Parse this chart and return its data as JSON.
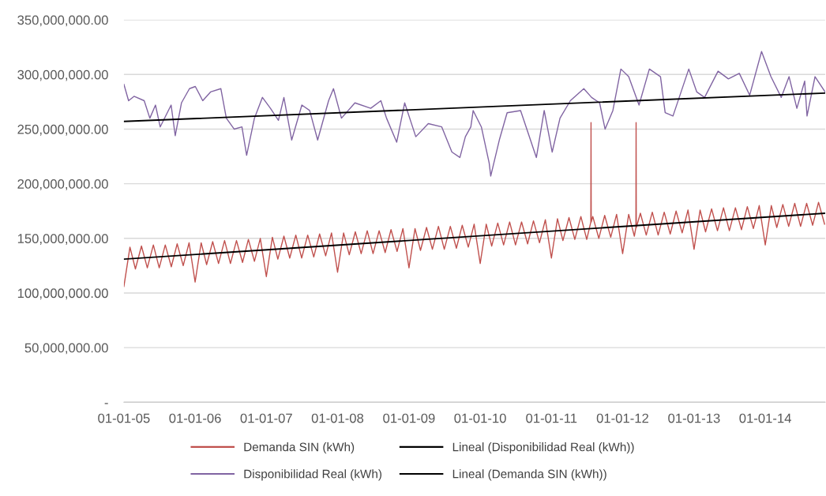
{
  "chart_data": {
    "type": "line",
    "xlim": [
      "2005-01-01",
      "2014-11-04"
    ],
    "xticks": [
      {
        "value": "2005-01-01",
        "label": "01-01-05"
      },
      {
        "value": "2006-01-01",
        "label": "01-01-06"
      },
      {
        "value": "2007-01-01",
        "label": "01-01-07"
      },
      {
        "value": "2008-01-01",
        "label": "01-01-08"
      },
      {
        "value": "2009-01-01",
        "label": "01-01-09"
      },
      {
        "value": "2010-01-01",
        "label": "01-01-10"
      },
      {
        "value": "2011-01-01",
        "label": "01-01-11"
      },
      {
        "value": "2012-01-01",
        "label": "01-01-12"
      },
      {
        "value": "2013-01-01",
        "label": "01-01-13"
      },
      {
        "value": "2014-01-01",
        "label": "01-01-14"
      }
    ],
    "ylim": [
      0,
      350000000.0
    ],
    "yticks": [
      {
        "value": 0,
        "label": "-"
      },
      {
        "value": 50000000.0,
        "label": "50,000,000.00"
      },
      {
        "value": 100000000.0,
        "label": "100,000,000.00"
      },
      {
        "value": 150000000.0,
        "label": "150,000,000.00"
      },
      {
        "value": 200000000.0,
        "label": "200,000,000.00"
      },
      {
        "value": 250000000.0,
        "label": "250,000,000.00"
      },
      {
        "value": 300000000.0,
        "label": "300,000,000.00"
      },
      {
        "value": 350000000.0,
        "label": "350,000,000.00"
      }
    ],
    "grid": "y",
    "legend": "bottom",
    "marker": "none",
    "line_style": "solid",
    "series": [
      {
        "name": "Demanda SIN (kWh)",
        "color": "#c0504d",
        "x": [
          "2005-01-01",
          "2005-02-01",
          "2005-03-01",
          "2005-04-01",
          "2005-05-01",
          "2005-06-01",
          "2005-07-01",
          "2005-08-01",
          "2005-09-01",
          "2005-10-01",
          "2005-11-01",
          "2005-12-01",
          "2006-01-01",
          "2006-02-01",
          "2006-03-01",
          "2006-04-01",
          "2006-05-01",
          "2006-06-01",
          "2006-07-01",
          "2006-08-01",
          "2006-09-01",
          "2006-10-01",
          "2006-11-01",
          "2006-12-01",
          "2007-01-01",
          "2007-02-01",
          "2007-03-01",
          "2007-04-01",
          "2007-05-01",
          "2007-06-01",
          "2007-07-01",
          "2007-08-01",
          "2007-09-01",
          "2007-10-01",
          "2007-11-01",
          "2007-12-01",
          "2008-01-01",
          "2008-02-01",
          "2008-03-01",
          "2008-04-01",
          "2008-05-01",
          "2008-06-01",
          "2008-07-01",
          "2008-08-01",
          "2008-09-01",
          "2008-10-01",
          "2008-11-01",
          "2008-12-01",
          "2009-01-01",
          "2009-02-01",
          "2009-03-01",
          "2009-04-01",
          "2009-05-01",
          "2009-06-01",
          "2009-07-01",
          "2009-08-01",
          "2009-09-01",
          "2009-10-01",
          "2009-11-01",
          "2009-12-01",
          "2010-01-01",
          "2010-02-01",
          "2010-03-01",
          "2010-04-01",
          "2010-05-01",
          "2010-06-01",
          "2010-07-01",
          "2010-08-01",
          "2010-09-01",
          "2010-10-01",
          "2010-11-01",
          "2010-12-01",
          "2011-01-01",
          "2011-02-01",
          "2011-03-01",
          "2011-04-01",
          "2011-05-01",
          "2011-06-01",
          "2011-07-01",
          "2011-07-22",
          "2011-07-23",
          "2011-07-24",
          "2011-08-01",
          "2011-09-01",
          "2011-10-01",
          "2011-11-01",
          "2011-12-01",
          "2012-01-01",
          "2012-02-01",
          "2012-03-01",
          "2012-03-09",
          "2012-03-10",
          "2012-03-11",
          "2012-04-01",
          "2012-05-01",
          "2012-06-01",
          "2012-07-01",
          "2012-08-01",
          "2012-09-01",
          "2012-10-01",
          "2012-11-01",
          "2012-12-01",
          "2013-01-01",
          "2013-02-01",
          "2013-03-01",
          "2013-04-01",
          "2013-05-01",
          "2013-06-01",
          "2013-07-01",
          "2013-08-01",
          "2013-09-01",
          "2013-10-01",
          "2013-11-01",
          "2013-12-01",
          "2014-01-01",
          "2014-02-01",
          "2014-03-01",
          "2014-04-01",
          "2014-05-01",
          "2014-06-01",
          "2014-07-01",
          "2014-08-01",
          "2014-09-01",
          "2014-10-01",
          "2014-11-01"
        ],
        "values": [
          106000000.0,
          142000000.0,
          122000000.0,
          143000000.0,
          123000000.0,
          144000000.0,
          123000000.0,
          144000000.0,
          124000000.0,
          145000000.0,
          125000000.0,
          146000000.0,
          110000000.0,
          146000000.0,
          126000000.0,
          147000000.0,
          127000000.0,
          148000000.0,
          127000000.0,
          148000000.0,
          128000000.0,
          149000000.0,
          129000000.0,
          150000000.0,
          115000000.0,
          151000000.0,
          131000000.0,
          152000000.0,
          132000000.0,
          153000000.0,
          132000000.0,
          153000000.0,
          133000000.0,
          154000000.0,
          134000000.0,
          155000000.0,
          119000000.0,
          155000000.0,
          135000000.0,
          156000000.0,
          136000000.0,
          157000000.0,
          136000000.0,
          157000000.0,
          137000000.0,
          158000000.0,
          138000000.0,
          159000000.0,
          123000000.0,
          159000000.0,
          139000000.0,
          160000000.0,
          140000000.0,
          161000000.0,
          140000000.0,
          161000000.0,
          141000000.0,
          162000000.0,
          142000000.0,
          163000000.0,
          127000000.0,
          163000000.0,
          143000000.0,
          164000000.0,
          144000000.0,
          165000000.0,
          144000000.0,
          165000000.0,
          145000000.0,
          166000000.0,
          146000000.0,
          167000000.0,
          132000000.0,
          168000000.0,
          148000000.0,
          169000000.0,
          149000000.0,
          170000000.0,
          149000000.0,
          165000000.0,
          256000000.0,
          165000000.0,
          170000000.0,
          150000000.0,
          171000000.0,
          151000000.0,
          172000000.0,
          136000000.0,
          172000000.0,
          152000000.0,
          160000000.0,
          256000000.0,
          160000000.0,
          173000000.0,
          153000000.0,
          174000000.0,
          153000000.0,
          174000000.0,
          154000000.0,
          175000000.0,
          155000000.0,
          176000000.0,
          140000000.0,
          176000000.0,
          156000000.0,
          177000000.0,
          157000000.0,
          178000000.0,
          157000000.0,
          178000000.0,
          158000000.0,
          179000000.0,
          159000000.0,
          180000000.0,
          144000000.0,
          180000000.0,
          160000000.0,
          181000000.0,
          161000000.0,
          182000000.0,
          161000000.0,
          182000000.0,
          162000000.0,
          183000000.0,
          163000000.0
        ]
      },
      {
        "name": "Disponibilidad Real (kWh)",
        "color": "#8064a2",
        "x": [
          "2005-01-01",
          "2005-01-25",
          "2005-02-22",
          "2005-04-15",
          "2005-05-14",
          "2005-06-12",
          "2005-07-06",
          "2005-08-31",
          "2005-09-21",
          "2005-10-23",
          "2005-12-03",
          "2006-01-02",
          "2006-02-09",
          "2006-03-21",
          "2006-05-13",
          "2006-06-10",
          "2006-07-20",
          "2006-08-29",
          "2006-09-22",
          "2006-11-01",
          "2006-12-12",
          "2007-01-22",
          "2007-03-04",
          "2007-04-01",
          "2007-05-11",
          "2007-07-02",
          "2007-08-11",
          "2007-09-21",
          "2007-11-16",
          "2007-12-11",
          "2008-01-21",
          "2008-03-30",
          "2008-06-19",
          "2008-08-10",
          "2008-09-08",
          "2008-10-30",
          "2008-12-10",
          "2009-02-05",
          "2009-04-10",
          "2009-06-18",
          "2009-08-09",
          "2009-09-19",
          "2009-10-17",
          "2009-11-14",
          "2009-11-26",
          "2010-01-07",
          "2010-02-16",
          "2010-02-24",
          "2010-04-09",
          "2010-05-19",
          "2010-07-27",
          "2010-10-16",
          "2010-11-25",
          "2011-01-05",
          "2011-02-14",
          "2011-04-08",
          "2011-06-16",
          "2011-07-26",
          "2011-09-05",
          "2011-10-03",
          "2011-11-12",
          "2011-12-23",
          "2012-02-01",
          "2012-03-25",
          "2012-05-17",
          "2012-07-13",
          "2012-08-06",
          "2012-09-15",
          "2012-12-05",
          "2013-01-15",
          "2013-02-24",
          "2013-05-04",
          "2013-06-26",
          "2013-08-21",
          "2013-10-13",
          "2013-12-13",
          "2014-01-30",
          "2014-03-24",
          "2014-05-03",
          "2014-06-12",
          "2014-07-22",
          "2014-08-03",
          "2014-09-13",
          "2014-11-04"
        ],
        "values": [
          291000000.0,
          276000000.0,
          280000000.0,
          276000000.0,
          260000000.0,
          272000000.0,
          252000000.0,
          272000000.0,
          244000000.0,
          274000000.0,
          287000000.0,
          289000000.0,
          276000000.0,
          284000000.0,
          287000000.0,
          260000000.0,
          250000000.0,
          252000000.0,
          226000000.0,
          260000000.0,
          279000000.0,
          269000000.0,
          258000000.0,
          279000000.0,
          240000000.0,
          272000000.0,
          267000000.0,
          240000000.0,
          276000000.0,
          287000000.0,
          260000000.0,
          274000000.0,
          269000000.0,
          276000000.0,
          260000000.0,
          238000000.0,
          274000000.0,
          243000000.0,
          255000000.0,
          252000000.0,
          229000000.0,
          224000000.0,
          243000000.0,
          252000000.0,
          267000000.0,
          252000000.0,
          219000000.0,
          207000000.0,
          240000000.0,
          265000000.0,
          267000000.0,
          224000000.0,
          267000000.0,
          229000000.0,
          260000000.0,
          276000000.0,
          287000000.0,
          279000000.0,
          274000000.0,
          250000000.0,
          267000000.0,
          305000000.0,
          298000000.0,
          272000000.0,
          305000000.0,
          298000000.0,
          265000000.0,
          262000000.0,
          305000000.0,
          284000000.0,
          279000000.0,
          303000000.0,
          296000000.0,
          301000000.0,
          281000000.0,
          321000000.0,
          298000000.0,
          279000000.0,
          298000000.0,
          269000000.0,
          294000000.0,
          262000000.0,
          298000000.0,
          284000000.0
        ]
      },
      {
        "name": "Lineal (Disponibilidad Real (kWh))",
        "color": "#000000",
        "x": [
          "2005-01-01",
          "2014-11-04"
        ],
        "values": [
          257000000.0,
          283000000.0
        ]
      },
      {
        "name": "Lineal (Demanda SIN (kWh))",
        "color": "#000000",
        "x": [
          "2005-01-01",
          "2014-11-04"
        ],
        "values": [
          131000000.0,
          173000000.0
        ]
      }
    ]
  }
}
